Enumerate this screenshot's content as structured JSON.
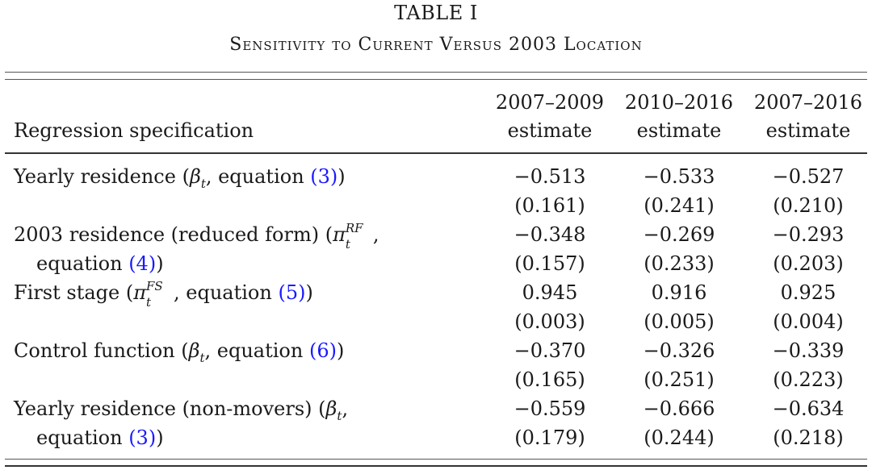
{
  "title": "TABLE I",
  "subtitle": "Sensitivity to Current Versus 2003 Location",
  "header": {
    "label": "Regression specification",
    "columns": [
      {
        "line1": "2007–2009",
        "line2": "estimate"
      },
      {
        "line1": "2010–2016",
        "line2": "estimate"
      },
      {
        "line1": "2007–2016",
        "line2": "estimate"
      }
    ]
  },
  "link_color": "#1a1aff",
  "rows": [
    {
      "pre": "Yearly residence (",
      "sym": "β",
      "sub": "t",
      "sup": "",
      "mid": ", equation ",
      "line2": "",
      "link": "(3)",
      "post": ")",
      "estimates": [
        "−0.513",
        "−0.533",
        "−0.527"
      ],
      "se": [
        "(0.161)",
        "(0.241)",
        "(0.210)"
      ]
    },
    {
      "pre": "2003 residence (reduced form) (",
      "sym": "π",
      "sub": "t",
      "sup": "RF",
      "mid": ",",
      "line2": "equation ",
      "link": "(4)",
      "post": ")",
      "estimates": [
        "−0.348",
        "−0.269",
        "−0.293"
      ],
      "se": [
        "(0.157)",
        "(0.233)",
        "(0.203)"
      ]
    },
    {
      "pre": "First stage (",
      "sym": "π",
      "sub": "t",
      "sup": "FS",
      "mid": ", equation ",
      "line2": "",
      "link": "(5)",
      "post": ")",
      "estimates": [
        "0.945",
        "0.916",
        "0.925"
      ],
      "se": [
        "(0.003)",
        "(0.005)",
        "(0.004)"
      ]
    },
    {
      "pre": "Control function (",
      "sym": "β",
      "sub": "t",
      "sup": "",
      "mid": ", equation ",
      "line2": "",
      "link": "(6)",
      "post": ")",
      "estimates": [
        "−0.370",
        "−0.326",
        "−0.339"
      ],
      "se": [
        "(0.165)",
        "(0.251)",
        "(0.223)"
      ]
    },
    {
      "pre": "Yearly residence (non-movers) (",
      "sym": "β",
      "sub": "t",
      "sup": "",
      "mid": ",",
      "line2": "equation ",
      "link": "(3)",
      "post": ")",
      "estimates": [
        "−0.559",
        "−0.666",
        "−0.634"
      ],
      "se": [
        "(0.179)",
        "(0.244)",
        "(0.218)"
      ]
    }
  ]
}
